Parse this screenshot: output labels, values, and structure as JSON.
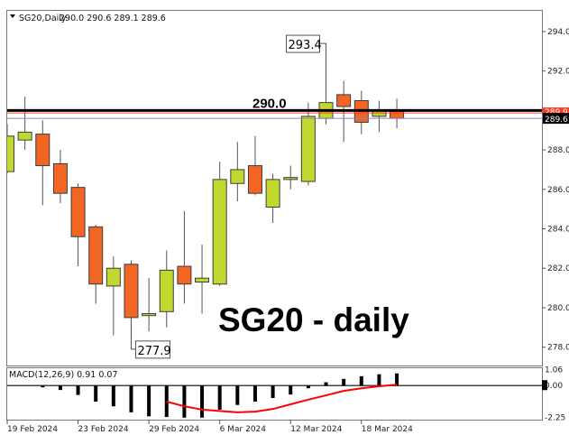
{
  "header": {
    "symbol": "SG20,Daily",
    "ohlc": "290.0 290.6 289.1 289.6"
  },
  "title_overlay": "SG20 - daily",
  "colors": {
    "bull": "#c3d82f",
    "bear": "#f26522",
    "candle_border": "#3c3c3c",
    "level_line": "#000000",
    "ask_line": "#ff3b1f",
    "bid_line": "#8a86c8",
    "signal_line": "#ff0000",
    "histogram": "#000000"
  },
  "chart_data": [
    {
      "type": "candlestick",
      "ylim": [
        277.07,
        295.05
      ],
      "y_ticks": [
        "294.0",
        "292.0",
        "288.0",
        "286.0",
        "284.0",
        "282.0",
        "280.0",
        "278.0"
      ],
      "x_tick_labels": [
        {
          "index": 0,
          "label": "19 Feb 2024"
        },
        {
          "index": 4,
          "label": "23 Feb 2024"
        },
        {
          "index": 8,
          "label": "29 Feb 2024"
        },
        {
          "index": 12,
          "label": "6 Mar 2024"
        },
        {
          "index": 16,
          "label": "12 Mar 2024"
        },
        {
          "index": 20,
          "label": "18 Mar 2024"
        }
      ],
      "candles": [
        {
          "date": "19 Feb 2024",
          "o": 286.9,
          "h": 289.3,
          "l": 286.8,
          "c": 288.7
        },
        {
          "date": "20 Feb 2024",
          "o": 288.5,
          "h": 290.7,
          "l": 288.0,
          "c": 288.9
        },
        {
          "date": "21 Feb 2024",
          "o": 288.8,
          "h": 289.5,
          "l": 285.2,
          "c": 287.2
        },
        {
          "date": "22 Feb 2024",
          "o": 287.3,
          "h": 288.0,
          "l": 285.3,
          "c": 285.8
        },
        {
          "date": "23 Feb 2024",
          "o": 286.1,
          "h": 286.3,
          "l": 282.1,
          "c": 283.6
        },
        {
          "date": "26 Feb 2024",
          "o": 284.1,
          "h": 284.2,
          "l": 280.2,
          "c": 281.2
        },
        {
          "date": "27 Feb 2024",
          "o": 281.1,
          "h": 282.6,
          "l": 278.6,
          "c": 282.0
        },
        {
          "date": "28 Feb 2024",
          "o": 282.2,
          "h": 282.4,
          "l": 277.9,
          "c": 279.5
        },
        {
          "date": "29 Feb 2024",
          "o": 279.6,
          "h": 281.5,
          "l": 278.8,
          "c": 279.7
        },
        {
          "date": "1 Mar 2024",
          "o": 279.8,
          "h": 282.9,
          "l": 279.0,
          "c": 281.9
        },
        {
          "date": "4 Mar 2024",
          "o": 282.1,
          "h": 284.9,
          "l": 280.2,
          "c": 281.2
        },
        {
          "date": "5 Mar 2024",
          "o": 281.3,
          "h": 283.2,
          "l": 279.7,
          "c": 281.5
        },
        {
          "date": "6 Mar 2024",
          "o": 281.2,
          "h": 287.4,
          "l": 281.1,
          "c": 286.5
        },
        {
          "date": "7 Mar 2024",
          "o": 286.3,
          "h": 288.4,
          "l": 285.4,
          "c": 287.0
        },
        {
          "date": "8 Mar 2024",
          "o": 287.2,
          "h": 288.7,
          "l": 285.7,
          "c": 285.8
        },
        {
          "date": "11 Mar 2024",
          "o": 285.1,
          "h": 286.8,
          "l": 284.3,
          "c": 286.5
        },
        {
          "date": "12 Mar 2024",
          "o": 286.5,
          "h": 287.2,
          "l": 286.0,
          "c": 286.6
        },
        {
          "date": "13 Mar 2024",
          "o": 286.4,
          "h": 290.4,
          "l": 286.2,
          "c": 289.7
        },
        {
          "date": "14 Mar 2024",
          "o": 289.6,
          "h": 293.4,
          "l": 289.3,
          "c": 290.4
        },
        {
          "date": "15 Mar 2024",
          "o": 290.8,
          "h": 291.5,
          "l": 288.4,
          "c": 290.2
        },
        {
          "date": "18 Mar 2024",
          "o": 290.5,
          "h": 291.0,
          "l": 288.8,
          "c": 289.4
        },
        {
          "date": "19 Mar 2024",
          "o": 289.7,
          "h": 290.5,
          "l": 288.9,
          "c": 290.0
        },
        {
          "date": "20 Mar 2024",
          "o": 290.0,
          "h": 290.6,
          "l": 289.1,
          "c": 289.6
        }
      ],
      "levels": [
        {
          "value": 290.0,
          "label": "290.0"
        }
      ],
      "ask_line": {
        "value": 289.9,
        "label": "289.9"
      },
      "bid_line": {
        "value": 289.6,
        "label": "289.6"
      },
      "annotations": [
        {
          "index": 18,
          "value": 293.4,
          "label": "293.4"
        },
        {
          "index": 7,
          "value": 277.9,
          "label": "277.9"
        }
      ],
      "grid": false
    },
    {
      "type": "bar+line",
      "title": "MACD(12,26,9) 0.91 0.07",
      "ylim": [
        -2.55,
        1.3
      ],
      "y_ticks": [
        "1.06",
        "0.00",
        "-2.25"
      ],
      "histogram": [
        0,
        0,
        -0.13,
        -0.33,
        -0.7,
        -1.2,
        -1.55,
        -2.0,
        -2.3,
        -2.35,
        -2.4,
        -2.4,
        -1.8,
        -1.45,
        -1.2,
        -0.93,
        -0.67,
        -0.2,
        0.25,
        0.5,
        0.7,
        0.85,
        0.91
      ],
      "signal_start_index": 9,
      "signal": [
        -1.2,
        -1.55,
        -1.8,
        -1.9,
        -2.0,
        -1.95,
        -1.75,
        -1.4,
        -1.05,
        -0.73,
        -0.4,
        -0.2,
        -0.05,
        0.07
      ]
    }
  ]
}
